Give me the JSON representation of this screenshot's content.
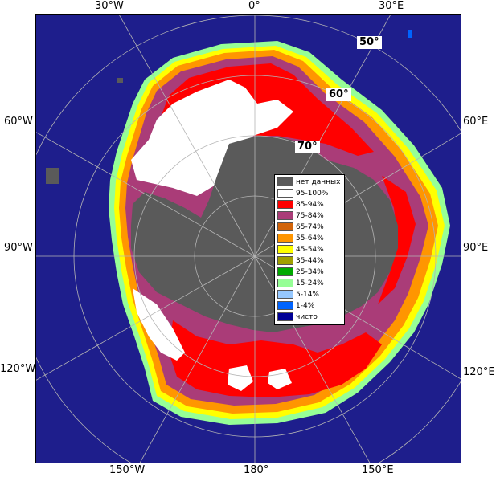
{
  "map": {
    "longitude_labels": {
      "lon_30w_top": "30°W",
      "lon_0_top": "0°",
      "lon_30e_top": "30°E",
      "lon_60w": "60°W",
      "lon_60e": "60°E",
      "lon_90w": "90°W",
      "lon_90e": "90°E",
      "lon_120w": "120°W",
      "lon_120e": "120°E",
      "lon_150w": "150°W",
      "lon_180": "180°",
      "lon_150e": "150°E"
    },
    "latitude_labels": {
      "lat_50": "50°",
      "lat_60": "60°",
      "lat_70": "70°"
    },
    "colors": {
      "ocean": "#1e1e8c",
      "land_nodata": "#5a5a5a",
      "grid": "#b4b4b4"
    }
  },
  "legend": {
    "items": [
      {
        "label": "нет данных",
        "color": "#5a5a5a"
      },
      {
        "label": "95-100%",
        "color": "#ffffff"
      },
      {
        "label": "85-94%",
        "color": "#ff0000"
      },
      {
        "label": "75-84%",
        "color": "#aa3c78"
      },
      {
        "label": "65-74%",
        "color": "#d2640a"
      },
      {
        "label": "55-64%",
        "color": "#ff9600"
      },
      {
        "label": "45-54%",
        "color": "#ffff00"
      },
      {
        "label": "35-44%",
        "color": "#a0a000"
      },
      {
        "label": "25-34%",
        "color": "#00aa00"
      },
      {
        "label": "15-24%",
        "color": "#96ff96"
      },
      {
        "label": "5-14%",
        "color": "#96c8ff"
      },
      {
        "label": "1-4%",
        "color": "#0064ff"
      },
      {
        "label": "чисто",
        "color": "#000096"
      }
    ]
  }
}
